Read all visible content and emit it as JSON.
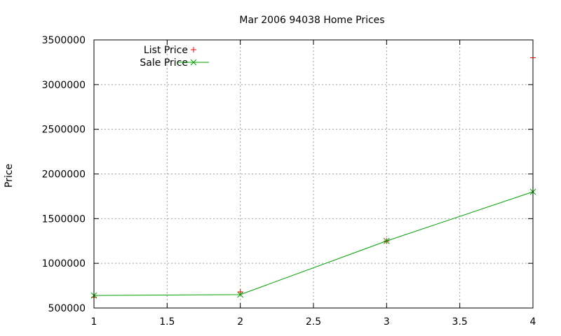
{
  "chart_data": {
    "type": "line",
    "title": "Mar 2006 94038 Home Prices",
    "xlabel": "",
    "ylabel": "Price",
    "xlim": [
      1,
      4
    ],
    "ylim": [
      500000,
      3500000
    ],
    "x_ticks": [
      1,
      1.5,
      2,
      2.5,
      3,
      3.5,
      4
    ],
    "y_ticks": [
      500000,
      1000000,
      1500000,
      2000000,
      2500000,
      3000000,
      3500000
    ],
    "grid": true,
    "legend_position": "top-left",
    "series": [
      {
        "name": "List Price",
        "style": "points",
        "marker": "plus",
        "color": "#ff0000",
        "points": [
          {
            "x": 1,
            "y": 620000
          },
          {
            "x": 2,
            "y": 680000
          },
          {
            "x": 3,
            "y": 1250000
          },
          {
            "x": 4,
            "y": 3300000
          }
        ]
      },
      {
        "name": "Sale Price",
        "style": "linespoints",
        "marker": "cross",
        "color": "#00a000",
        "points": [
          {
            "x": 1,
            "y": 640000
          },
          {
            "x": 2,
            "y": 650000
          },
          {
            "x": 3,
            "y": 1250000
          },
          {
            "x": 4,
            "y": 1800000
          }
        ]
      }
    ]
  }
}
